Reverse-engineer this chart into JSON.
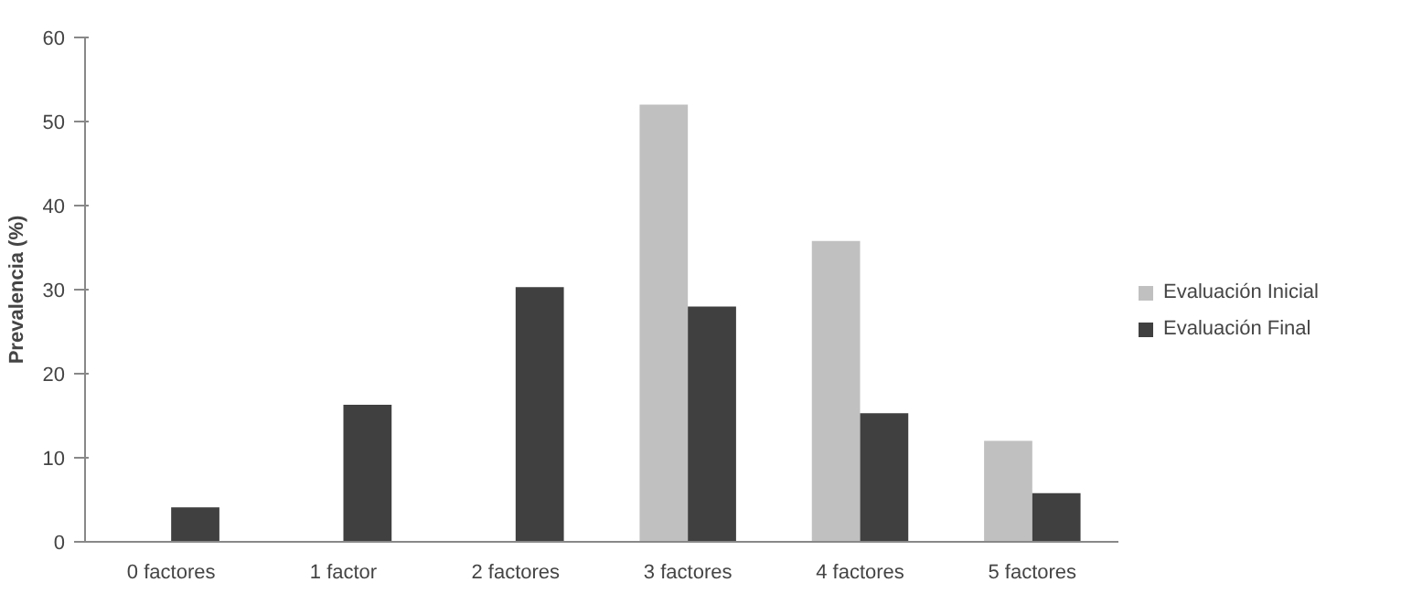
{
  "chart_data": {
    "type": "bar",
    "ylabel": "Prevalencia (%)",
    "categories": [
      "0 factores",
      "1 factor",
      "2 factores",
      "3 factores",
      "4 factores",
      "5 factores"
    ],
    "series": [
      {
        "name": "Evaluación Inicial",
        "color": "#c0c0c0",
        "values": [
          0,
          0,
          0,
          52,
          35.8,
          12
        ]
      },
      {
        "name": "Evaluación Final",
        "color": "#404040",
        "values": [
          4.1,
          16.3,
          30.3,
          28,
          15.3,
          5.8
        ]
      }
    ],
    "ylim": [
      0,
      60
    ],
    "yticks": [
      0,
      10,
      20,
      30,
      40,
      50,
      60
    ],
    "grid": false,
    "legend": "right"
  }
}
